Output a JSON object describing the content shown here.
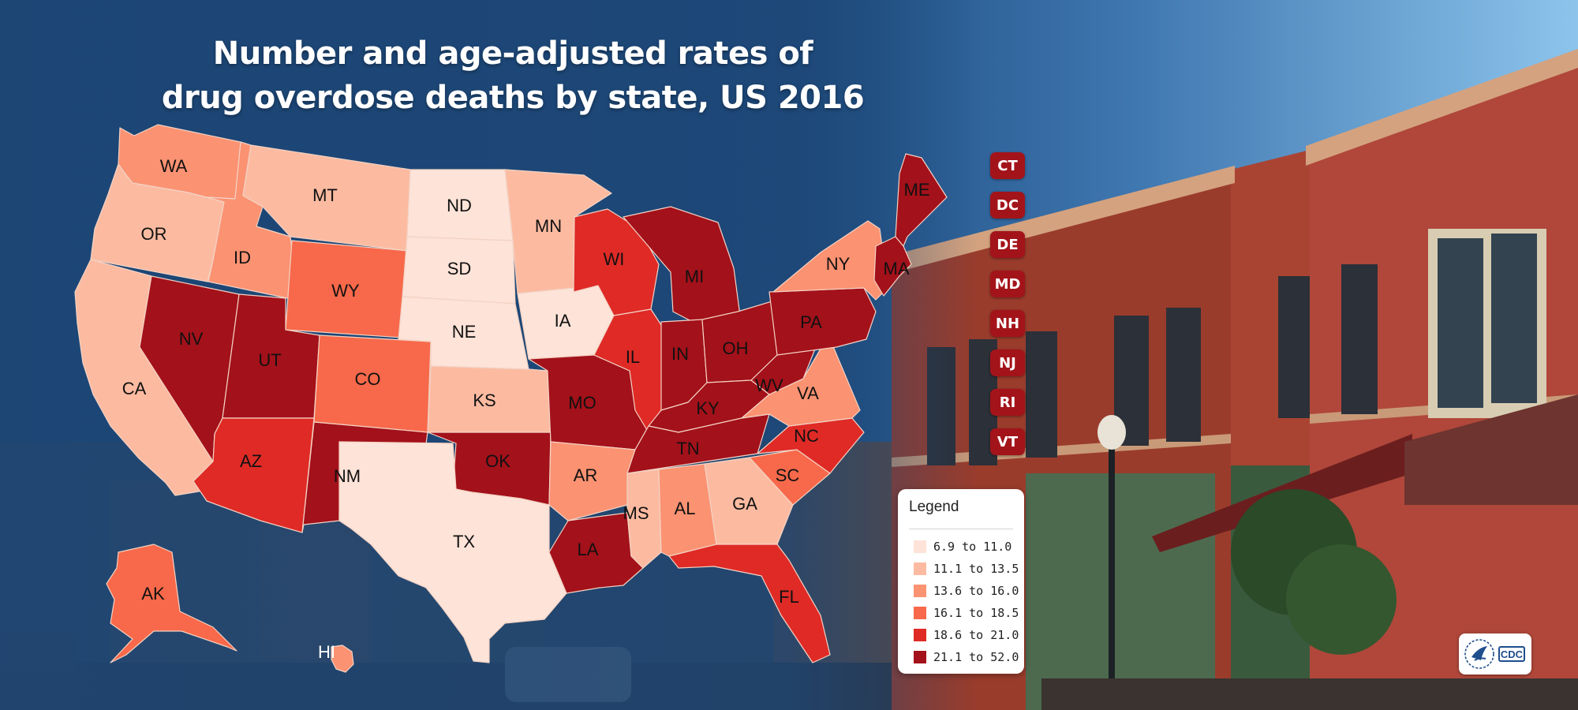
{
  "title_line1": "Number and age-adjusted rates of",
  "title_line2": "drug overdose deaths by state, US 2016",
  "legend": {
    "title": "Legend",
    "items": [
      {
        "label": "6.9 to 11.0",
        "color": "#fde3d8"
      },
      {
        "label": "11.1 to 13.5",
        "color": "#fcbba1"
      },
      {
        "label": "13.6 to 16.0",
        "color": "#fb9272"
      },
      {
        "label": "16.1 to 18.5",
        "color": "#f7694a"
      },
      {
        "label": "18.6 to 21.0",
        "color": "#df2a26"
      },
      {
        "label": "21.1 to 52.0",
        "color": "#a3111a"
      }
    ]
  },
  "small_state_badges": [
    "CT",
    "DC",
    "DE",
    "MD",
    "NH",
    "NJ",
    "RI",
    "VT"
  ],
  "states": [
    {
      "code": "WA",
      "class": 3
    },
    {
      "code": "OR",
      "class": 2
    },
    {
      "code": "CA",
      "class": 2
    },
    {
      "code": "NV",
      "class": 6
    },
    {
      "code": "ID",
      "class": 3
    },
    {
      "code": "MT",
      "class": 2
    },
    {
      "code": "WY",
      "class": 4
    },
    {
      "code": "UT",
      "class": 6
    },
    {
      "code": "AZ",
      "class": 5
    },
    {
      "code": "CO",
      "class": 4
    },
    {
      "code": "NM",
      "class": 6
    },
    {
      "code": "ND",
      "class": 1
    },
    {
      "code": "SD",
      "class": 1
    },
    {
      "code": "NE",
      "class": 1
    },
    {
      "code": "KS",
      "class": 2
    },
    {
      "code": "OK",
      "class": 6
    },
    {
      "code": "TX",
      "class": 1
    },
    {
      "code": "MN",
      "class": 2
    },
    {
      "code": "IA",
      "class": 1
    },
    {
      "code": "MO",
      "class": 6
    },
    {
      "code": "AR",
      "class": 3
    },
    {
      "code": "LA",
      "class": 6
    },
    {
      "code": "WI",
      "class": 5
    },
    {
      "code": "IL",
      "class": 5
    },
    {
      "code": "MI",
      "class": 6
    },
    {
      "code": "IN",
      "class": 6
    },
    {
      "code": "OH",
      "class": 6
    },
    {
      "code": "KY",
      "class": 6
    },
    {
      "code": "TN",
      "class": 6
    },
    {
      "code": "MS",
      "class": 2
    },
    {
      "code": "AL",
      "class": 3
    },
    {
      "code": "GA",
      "class": 2
    },
    {
      "code": "FL",
      "class": 5
    },
    {
      "code": "SC",
      "class": 4
    },
    {
      "code": "NC",
      "class": 5
    },
    {
      "code": "VA",
      "class": 3
    },
    {
      "code": "WV",
      "class": 6
    },
    {
      "code": "PA",
      "class": 6
    },
    {
      "code": "NY",
      "class": 3
    },
    {
      "code": "MA",
      "class": 6
    },
    {
      "code": "ME",
      "class": 6
    },
    {
      "code": "AK",
      "class": 4
    },
    {
      "code": "HI",
      "class": 3
    }
  ],
  "logo_text": "CDC"
}
